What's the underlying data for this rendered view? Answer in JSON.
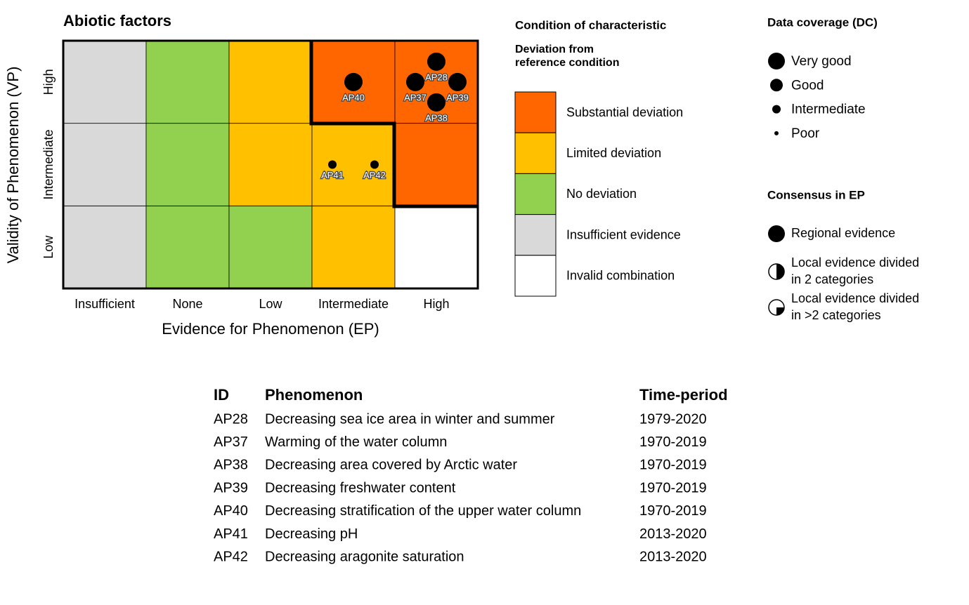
{
  "title": "Abiotic factors",
  "x_axis": {
    "label": "Evidence for Phenomenon (EP)",
    "categories": [
      "Insufficient",
      "None",
      "Low",
      "Intermediate",
      "High"
    ]
  },
  "y_axis": {
    "label": "Validity of Phenomenon (VP)",
    "categories": [
      "Low",
      "Intermediate",
      "High"
    ]
  },
  "cell_colors": [
    [
      "#d9d9d9",
      "#92d050",
      "#92d050",
      "#ffc000",
      "#ffffff"
    ],
    [
      "#d9d9d9",
      "#92d050",
      "#ffc000",
      "#ffc000",
      "#ff6600"
    ],
    [
      "#d9d9d9",
      "#92d050",
      "#ffc000",
      "#ff6600",
      "#ff6600"
    ]
  ],
  "points": [
    {
      "id": "AP40",
      "ep": "Intermediate",
      "vp": "High",
      "dc": "Very good"
    },
    {
      "id": "AP28",
      "ep": "High",
      "vp": "High",
      "dc": "Very good"
    },
    {
      "id": "AP37",
      "ep": "High",
      "vp": "High",
      "dc": "Very good"
    },
    {
      "id": "AP38",
      "ep": "High",
      "vp": "High",
      "dc": "Very good"
    },
    {
      "id": "AP39",
      "ep": "High",
      "vp": "High",
      "dc": "Very good"
    },
    {
      "id": "AP41",
      "ep": "Intermediate",
      "vp": "Intermediate",
      "dc": "Intermediate"
    },
    {
      "id": "AP42",
      "ep": "Intermediate",
      "vp": "Intermediate",
      "dc": "Intermediate"
    }
  ],
  "condition_legend": {
    "title": "Condition of characteristic",
    "subtitle": [
      "Deviation from",
      "reference condition"
    ],
    "items": [
      {
        "label": "Substantial deviation",
        "color": "#ff6600"
      },
      {
        "label": "Limited deviation",
        "color": "#ffc000"
      },
      {
        "label": "No deviation",
        "color": "#92d050"
      },
      {
        "label": "Insufficient evidence",
        "color": "#d9d9d9"
      },
      {
        "label": "Invalid combination",
        "color": "#ffffff"
      }
    ]
  },
  "dc_legend": {
    "title": "Data coverage (DC)",
    "items": [
      "Very good",
      "Good",
      "Intermediate",
      "Poor"
    ]
  },
  "consensus_legend": {
    "title": "Consensus in EP",
    "items": [
      [
        "Regional evidence"
      ],
      [
        "Local evidence divided",
        "in 2 categories"
      ],
      [
        "Local evidence divided",
        "in >2 categories"
      ]
    ]
  },
  "table": {
    "header": [
      "ID",
      "Phenomenon",
      "Time-period"
    ],
    "rows": [
      [
        "AP28",
        "Decreasing sea ice area in winter and summer",
        "1979-2020"
      ],
      [
        "AP37",
        "Warming of the water column",
        "1970-2019"
      ],
      [
        "AP38",
        "Decreasing area covered by Arctic water",
        "1970-2019"
      ],
      [
        "AP39",
        "Decreasing freshwater content",
        "1970-2019"
      ],
      [
        "AP40",
        "Decreasing stratification of the upper water column",
        "1970-2019"
      ],
      [
        "AP41",
        "Decreasing pH",
        "2013-2020"
      ],
      [
        "AP42",
        "Decreasing aragonite saturation",
        "2013-2020"
      ]
    ]
  }
}
